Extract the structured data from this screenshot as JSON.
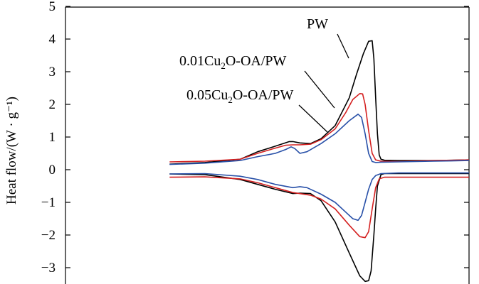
{
  "chart_data": {
    "type": "line",
    "xlabel": "",
    "ylabel": "Heat flow/(W · g⁻¹)",
    "ylim": [
      -3.4,
      5
    ],
    "yticks": [
      5,
      4,
      3,
      2,
      1,
      0,
      -1,
      -2,
      -3
    ],
    "ytick_labels": [
      "5",
      "4",
      "3",
      "2",
      "1",
      "0",
      "−1",
      "−2",
      "−3"
    ],
    "xlim": [
      0,
      100
    ],
    "grid": false,
    "annotations": [
      {
        "base": "PW",
        "sub": "",
        "rest": "",
        "series": "PW"
      },
      {
        "base": "0.01Cu",
        "sub": "2",
        "rest": "O-OA/PW",
        "series": "0.01Cu2O-OA/PW"
      },
      {
        "base": "0.05Cu",
        "sub": "2",
        "rest": "O-OA/PW",
        "series": "0.05Cu2O-OA/PW"
      }
    ],
    "series": [
      {
        "name": "PW",
        "color": "#000000",
        "heating": {
          "x": [
            15,
            25,
            35,
            40,
            45,
            49,
            50,
            52,
            55,
            58,
            62,
            66,
            68,
            70,
            71.5,
            72.5,
            73,
            73.5,
            74,
            74.5,
            75,
            76,
            80,
            90,
            100
          ],
          "y": [
            0.17,
            0.22,
            0.32,
            0.55,
            0.72,
            0.86,
            0.86,
            0.82,
            0.8,
            0.95,
            1.35,
            2.2,
            2.9,
            3.55,
            3.93,
            3.95,
            3.4,
            2.2,
            1.1,
            0.45,
            0.32,
            0.29,
            0.28,
            0.28,
            0.3
          ]
        },
        "cooling": {
          "x": [
            15,
            25,
            35,
            40,
            45,
            50,
            52,
            55,
            58,
            62,
            66,
            69,
            70.5,
            71.5,
            72.2,
            73,
            73.5,
            74,
            75,
            76,
            78,
            90,
            100
          ],
          "y": [
            -0.13,
            -0.15,
            -0.3,
            -0.45,
            -0.6,
            -0.73,
            -0.72,
            -0.73,
            -0.95,
            -1.6,
            -2.55,
            -3.25,
            -3.42,
            -3.4,
            -3.1,
            -2.0,
            -1.2,
            -0.5,
            -0.15,
            -0.12,
            -0.12,
            -0.12,
            -0.12
          ]
        }
      },
      {
        "name": "0.01Cu2O-OA/PW",
        "color": "#d42020",
        "heating": {
          "x": [
            15,
            25,
            35,
            40,
            45,
            48,
            50,
            52,
            55,
            58,
            62,
            65,
            67,
            69,
            69.8,
            70.5,
            71.5,
            72.5,
            73.5,
            75,
            80,
            90,
            100
          ],
          "y": [
            0.24,
            0.26,
            0.32,
            0.5,
            0.66,
            0.75,
            0.76,
            0.76,
            0.78,
            0.92,
            1.25,
            1.75,
            2.15,
            2.33,
            2.32,
            2.0,
            1.2,
            0.5,
            0.3,
            0.26,
            0.25,
            0.28,
            0.3
          ]
        },
        "cooling": {
          "x": [
            15,
            25,
            35,
            40,
            45,
            50,
            55,
            58,
            62,
            66,
            69,
            70.5,
            71.5,
            72.5,
            73.5,
            74.5,
            76,
            80,
            90,
            100
          ],
          "y": [
            -0.23,
            -0.22,
            -0.28,
            -0.4,
            -0.55,
            -0.7,
            -0.78,
            -0.9,
            -1.2,
            -1.7,
            -2.05,
            -2.08,
            -1.9,
            -1.2,
            -0.55,
            -0.28,
            -0.23,
            -0.23,
            -0.23,
            -0.23
          ]
        }
      },
      {
        "name": "0.05Cu2O-OA/PW",
        "color": "#2850a8",
        "heating": {
          "x": [
            15,
            25,
            35,
            40,
            45,
            48,
            49.5,
            50.5,
            52,
            54,
            58,
            62,
            66,
            68.5,
            69.5,
            70.5,
            71.5,
            72.5,
            73.5,
            75,
            80,
            90,
            100
          ],
          "y": [
            0.16,
            0.2,
            0.28,
            0.4,
            0.5,
            0.62,
            0.7,
            0.65,
            0.5,
            0.55,
            0.8,
            1.1,
            1.5,
            1.7,
            1.6,
            1.1,
            0.5,
            0.25,
            0.22,
            0.23,
            0.24,
            0.26,
            0.28
          ]
        },
        "cooling": {
          "x": [
            15,
            25,
            35,
            40,
            45,
            50,
            52,
            54,
            58,
            62,
            65,
            67,
            68.5,
            69.5,
            70.5,
            71.5,
            72.5,
            73.5,
            75,
            80,
            90,
            100
          ],
          "y": [
            -0.13,
            -0.12,
            -0.2,
            -0.3,
            -0.45,
            -0.55,
            -0.52,
            -0.55,
            -0.75,
            -1.0,
            -1.3,
            -1.5,
            -1.55,
            -1.4,
            -1.0,
            -0.6,
            -0.3,
            -0.18,
            -0.12,
            -0.1,
            -0.1,
            -0.1
          ]
        }
      }
    ]
  }
}
